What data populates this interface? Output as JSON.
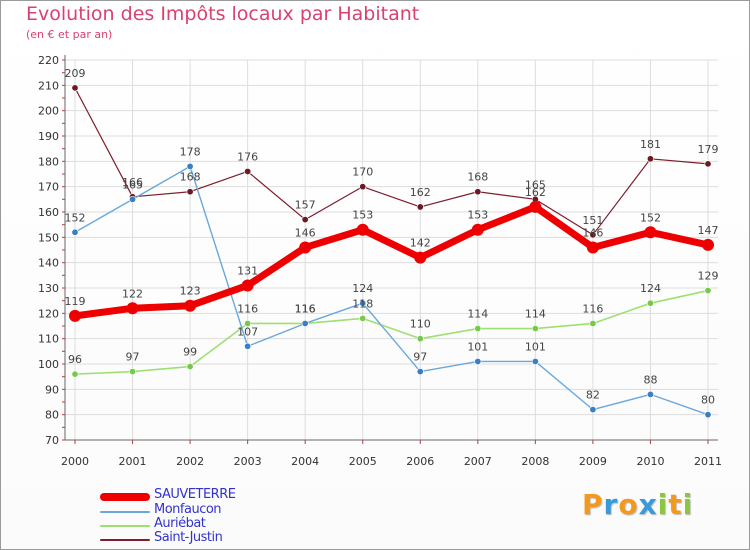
{
  "header": {
    "title": "Evolution des Impôts locaux par Habitant",
    "subtitle": "(en € et par an)"
  },
  "colors": {
    "title": "#d9426f",
    "legend_text": "#3333cc",
    "grid": "#dddddd",
    "axis": "#666666"
  },
  "chart_data": {
    "type": "line",
    "title": "Evolution des Impôts locaux par Habitant",
    "subtitle": "(en € et par an)",
    "xlabel": "",
    "ylabel": "",
    "x": [
      "2000",
      "2001",
      "2002",
      "2003",
      "2004",
      "2005",
      "2006",
      "2007",
      "2008",
      "2009",
      "2010",
      "2011"
    ],
    "ylim": [
      70,
      220
    ],
    "yticks": [
      70,
      80,
      90,
      100,
      110,
      120,
      130,
      140,
      150,
      160,
      170,
      180,
      190,
      200,
      210,
      220
    ],
    "grid": true,
    "legend_position": "bottom-left",
    "series": [
      {
        "name": "Saint-Justin",
        "color": "#7a1f2b",
        "marker": "#6b1a24",
        "width": 1.2,
        "values": [
          209,
          166,
          168,
          176,
          157,
          170,
          162,
          168,
          165,
          151,
          181,
          179
        ],
        "labels": [
          "209",
          "166",
          "168",
          "176",
          "157",
          "170",
          "162",
          "168",
          "165",
          "151",
          "181",
          "179"
        ]
      },
      {
        "name": "Auriébat",
        "color": "#9ee070",
        "marker": "#76c94a",
        "width": 1.6,
        "values": [
          96,
          97,
          99,
          116,
          116,
          118,
          110,
          114,
          114,
          116,
          124,
          129
        ],
        "labels": [
          "96",
          "97",
          "99",
          "116",
          "116",
          "118",
          "110",
          "114",
          "114",
          "116",
          "124",
          "129"
        ]
      },
      {
        "name": "Monfaucon",
        "color": "#6aa8dc",
        "marker": "#3a7fc4",
        "width": 1.4,
        "values": [
          152,
          165,
          178,
          107,
          116,
          124,
          97,
          101,
          101,
          82,
          88,
          80
        ],
        "labels": [
          "152",
          "165",
          "178",
          "107",
          "116",
          "124",
          "97",
          "101",
          "101",
          "82",
          "88",
          "80"
        ]
      },
      {
        "name": "SAUVETERRE",
        "color": "#ee0000",
        "marker": "#ee0000",
        "width": 7,
        "values": [
          119,
          122,
          123,
          131,
          146,
          153,
          142,
          153,
          162,
          146,
          152,
          147
        ],
        "labels": [
          "119",
          "122",
          "123",
          "131",
          "146",
          "153",
          "142",
          "153",
          "162",
          "146",
          "152",
          "147"
        ]
      }
    ]
  },
  "legend": {
    "items": [
      {
        "label": "SAUVETERRE",
        "color": "#ee0000",
        "thickness": 8
      },
      {
        "label": "Monfaucon",
        "color": "#6aa8dc",
        "thickness": 2
      },
      {
        "label": "Auriébat",
        "color": "#9ee070",
        "thickness": 2
      },
      {
        "label": "Saint-Justin",
        "color": "#7a1f2b",
        "thickness": 2
      }
    ]
  },
  "logo": {
    "letters": [
      "P",
      "r",
      "o",
      "x",
      "i",
      "t",
      "i"
    ],
    "colors": [
      "#f39a1e",
      "#3a9ad9",
      "#f39a1e",
      "#3a9ad9",
      "#8cc63f",
      "#f39a1e",
      "#8cc63f"
    ]
  }
}
